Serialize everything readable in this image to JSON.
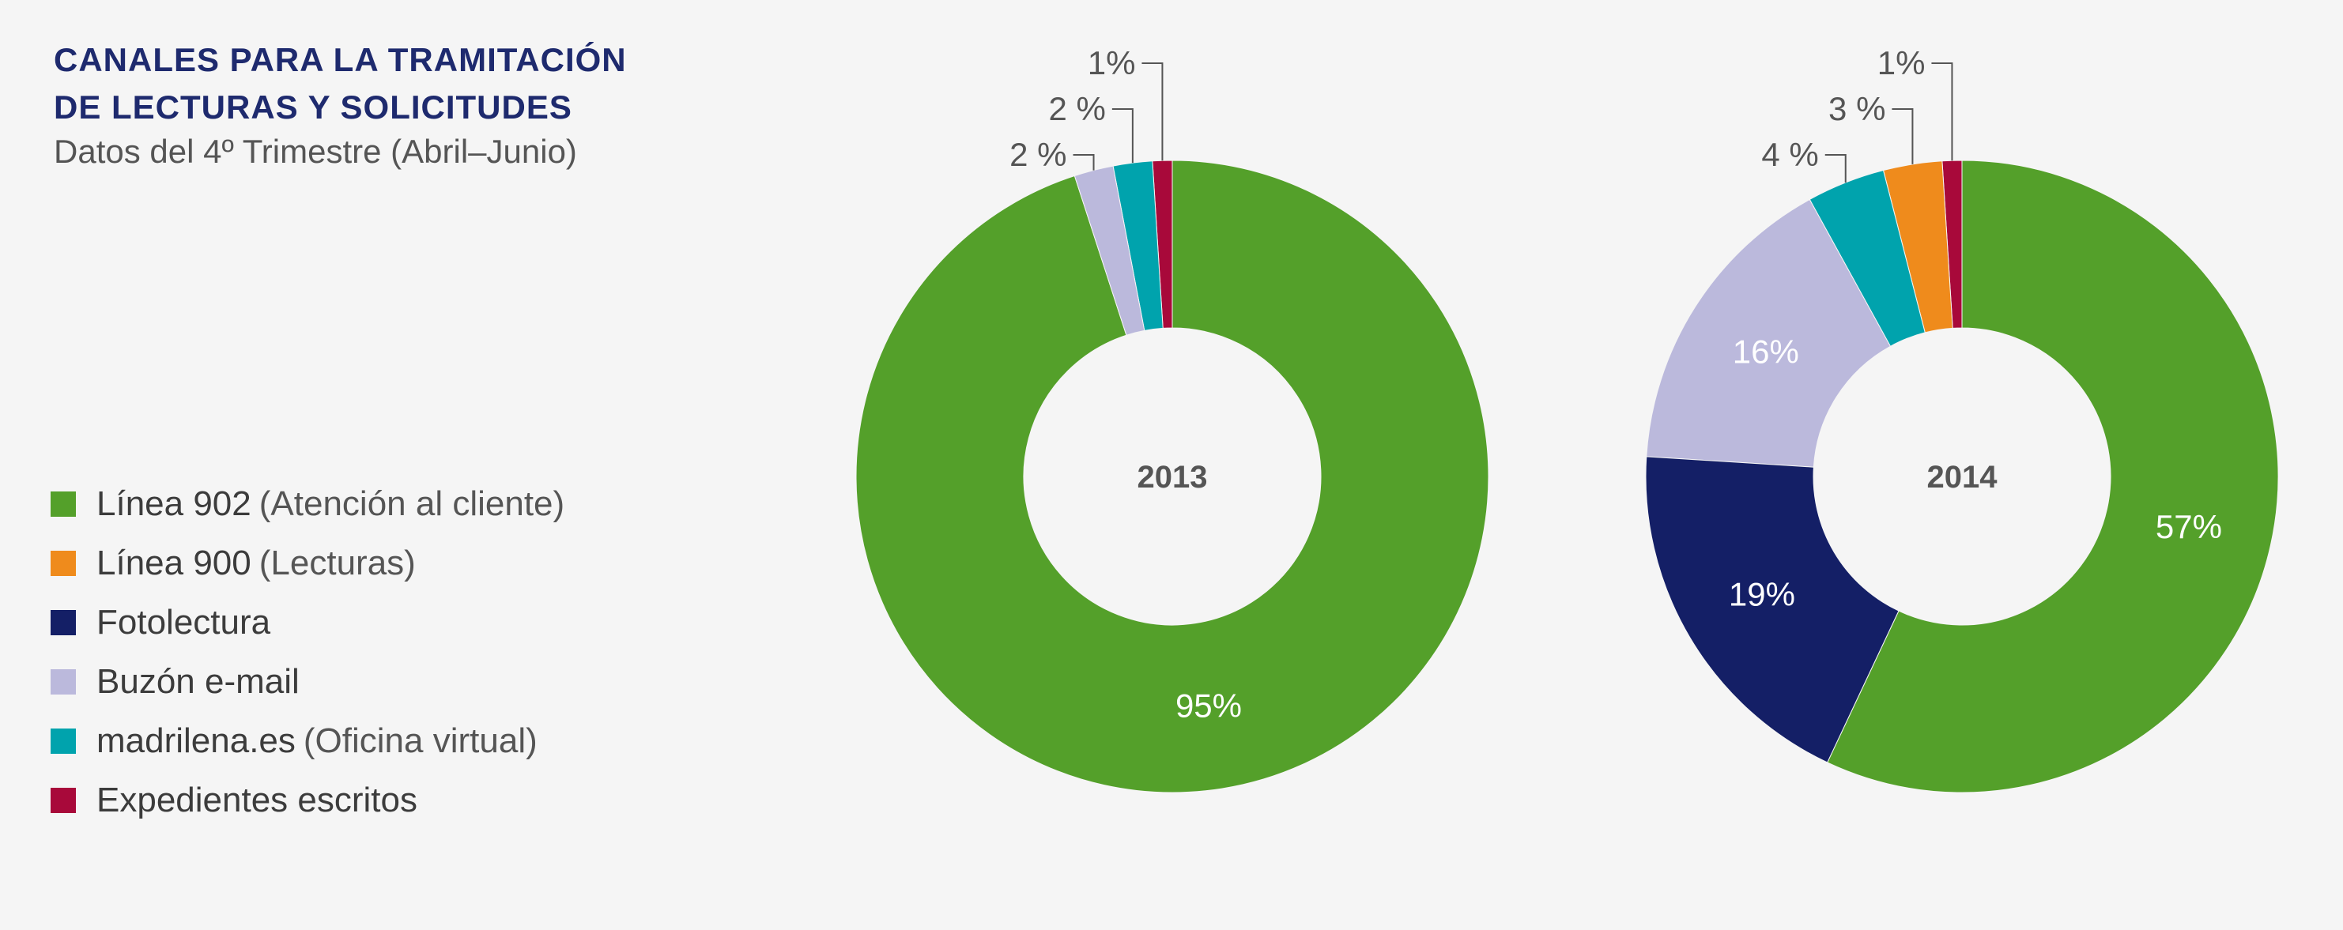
{
  "title": {
    "line1": "CANALES PARA LA TRAMITACIÓN",
    "line2": "DE LECTURAS Y SOLICITUDES",
    "subtitle": "Datos del 4º Trimestre (Abril–Junio)"
  },
  "legend": [
    {
      "label": "Línea 902",
      "sub": "(Atención al cliente)",
      "color": "#54a02a"
    },
    {
      "label": "Línea 900",
      "sub": "(Lecturas)",
      "color": "#ef8b1c"
    },
    {
      "label": "Fotolectura",
      "sub": "",
      "color": "#141f66"
    },
    {
      "label": "Buzón e-mail",
      "sub": "",
      "color": "#bbb9dc"
    },
    {
      "label": "madrilena.es",
      "sub": "(Oficina virtual)",
      "color": "#00a3ad"
    },
    {
      "label": "Expedientes escritos",
      "sub": "",
      "color": "#a8093a"
    }
  ],
  "chart_data": [
    {
      "type": "pie",
      "variant": "donut",
      "center_label": "2013",
      "slices": [
        {
          "category": "Línea 902",
          "value": 95,
          "label": "95%",
          "color": "#54a02a"
        },
        {
          "category": "Buzón e-mail",
          "value": 2,
          "label": "2 %",
          "color": "#bbb9dc"
        },
        {
          "category": "madrilena.es",
          "value": 2,
          "label": "2 %",
          "color": "#00a3ad"
        },
        {
          "category": "Expedientes escritos",
          "value": 1,
          "label": "1%",
          "color": "#a8093a"
        }
      ]
    },
    {
      "type": "pie",
      "variant": "donut",
      "center_label": "2014",
      "slices": [
        {
          "category": "Línea 902",
          "value": 57,
          "label": "57%",
          "color": "#54a02a"
        },
        {
          "category": "Fotolectura",
          "value": 19,
          "label": "19%",
          "color": "#141f66"
        },
        {
          "category": "Buzón e-mail",
          "value": 16,
          "label": "16%",
          "color": "#bbb9dc"
        },
        {
          "category": "madrilena.es",
          "value": 4,
          "label": "4 %",
          "color": "#00a3ad"
        },
        {
          "category": "Línea 900",
          "value": 3,
          "label": "3 %",
          "color": "#ef8b1c"
        },
        {
          "category": "Expedientes escritos",
          "value": 1,
          "label": "1%",
          "color": "#a8093a"
        }
      ]
    }
  ]
}
